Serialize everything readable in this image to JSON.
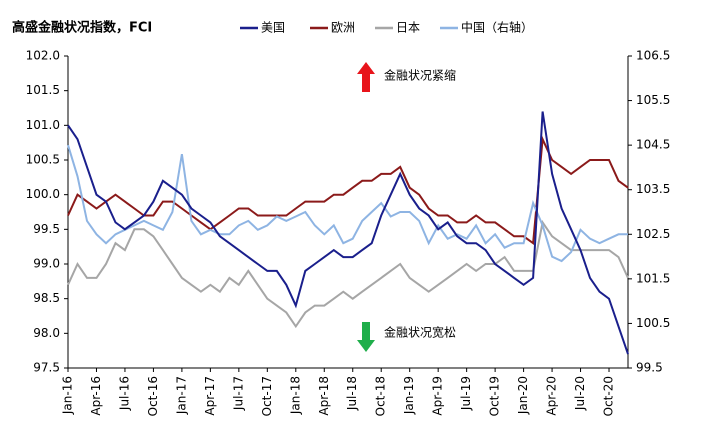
{
  "chart_data": {
    "type": "line",
    "title": "高盛金融状况指数，FCI",
    "annotations": [
      "金融状况紧缩",
      "金融状况宽松"
    ],
    "categories": [
      "Jan-16",
      null,
      null,
      "Apr-16",
      null,
      null,
      "Jul-16",
      null,
      null,
      "Oct-16",
      null,
      null,
      "Jan-17",
      null,
      null,
      "Apr-17",
      null,
      null,
      "Jul-17",
      null,
      null,
      "Oct-17",
      null,
      null,
      "Jan-18",
      null,
      null,
      "Apr-18",
      null,
      null,
      "Jul-18",
      null,
      null,
      "Oct-18",
      null,
      null,
      "Jan-19",
      null,
      null,
      "Apr-19",
      null,
      null,
      "Jul-19",
      null,
      null,
      "Oct-19",
      null,
      null,
      "Jan-20",
      null,
      null,
      "Apr-20",
      null,
      null,
      "Jul-20",
      null,
      null,
      "Oct-20",
      null,
      null
    ],
    "series": [
      {
        "name": "美国",
        "color": "#1a1f8c",
        "values": [
          101.0,
          100.8,
          100.4,
          100.0,
          99.9,
          99.6,
          99.5,
          99.6,
          99.7,
          99.9,
          100.2,
          100.1,
          100.0,
          99.8,
          99.7,
          99.6,
          99.4,
          99.3,
          99.2,
          99.1,
          99.0,
          98.9,
          98.9,
          98.7,
          98.4,
          98.9,
          99.0,
          99.1,
          99.2,
          99.1,
          99.1,
          99.2,
          99.3,
          99.7,
          100.0,
          100.3,
          100.0,
          99.8,
          99.7,
          99.5,
          99.6,
          99.4,
          99.3,
          99.3,
          99.2,
          99.0,
          98.9,
          98.8,
          98.7,
          98.8,
          101.2,
          100.3,
          99.8,
          99.5,
          99.2,
          98.8,
          98.6,
          98.5,
          98.1,
          97.7
        ]
      },
      {
        "name": "欧洲",
        "color": "#8b1a1a",
        "values": [
          99.7,
          100.0,
          99.9,
          99.8,
          99.9,
          100.0,
          99.9,
          99.8,
          99.7,
          99.7,
          99.9,
          99.9,
          99.8,
          99.7,
          99.6,
          99.5,
          99.6,
          99.7,
          99.8,
          99.8,
          99.7,
          99.7,
          99.7,
          99.7,
          99.8,
          99.9,
          99.9,
          99.9,
          100.0,
          100.0,
          100.1,
          100.2,
          100.2,
          100.3,
          100.3,
          100.4,
          100.1,
          100.0,
          99.8,
          99.7,
          99.7,
          99.6,
          99.6,
          99.7,
          99.6,
          99.6,
          99.5,
          99.4,
          99.4,
          99.3,
          100.8,
          100.5,
          100.4,
          100.3,
          100.4,
          100.5,
          100.5,
          100.5,
          100.2,
          100.1
        ]
      },
      {
        "name": "日本",
        "color": "#a6a6a6",
        "values": [
          98.7,
          99.0,
          98.8,
          98.8,
          99.0,
          99.3,
          99.2,
          99.5,
          99.5,
          99.4,
          99.2,
          99.0,
          98.8,
          98.7,
          98.6,
          98.7,
          98.6,
          98.8,
          98.7,
          98.9,
          98.7,
          98.5,
          98.4,
          98.3,
          98.1,
          98.3,
          98.4,
          98.4,
          98.5,
          98.6,
          98.5,
          98.6,
          98.7,
          98.8,
          98.9,
          99.0,
          98.8,
          98.7,
          98.6,
          98.7,
          98.8,
          98.9,
          99.0,
          98.9,
          99.0,
          99.0,
          99.1,
          98.9,
          98.9,
          98.9,
          99.6,
          99.4,
          99.3,
          99.2,
          99.2,
          99.2,
          99.2,
          99.2,
          99.1,
          98.8
        ]
      },
      {
        "name": "中国（右轴）",
        "color": "#8eb4e3",
        "axis": "y2",
        "values": [
          104.5,
          103.8,
          102.8,
          102.5,
          102.3,
          102.5,
          102.6,
          102.7,
          102.8,
          102.7,
          102.6,
          103.0,
          104.3,
          102.8,
          102.5,
          102.6,
          102.5,
          102.5,
          102.7,
          102.8,
          102.6,
          102.7,
          102.9,
          102.8,
          102.9,
          103.0,
          102.7,
          102.5,
          102.7,
          102.3,
          102.4,
          102.8,
          103.0,
          103.2,
          102.9,
          103.0,
          103.0,
          102.8,
          102.3,
          102.7,
          102.4,
          102.5,
          102.4,
          102.7,
          102.3,
          102.5,
          102.2,
          102.3,
          102.3,
          103.2,
          102.7,
          102.0,
          101.9,
          102.1,
          102.6,
          102.4,
          102.3,
          102.4,
          102.5,
          102.5
        ]
      }
    ],
    "ylim": [
      97.5,
      102.0
    ],
    "yticks": [
      97.5,
      {
        "value": 98,
        "label": "98.0"
      },
      98.5,
      {
        "value": 99,
        "label": "99.0"
      },
      99.5,
      {
        "value": 100,
        "label": "100.0"
      },
      100.5,
      {
        "value": 101,
        "label": "101.0"
      },
      101.5,
      {
        "value": 102,
        "label": "102.0"
      }
    ],
    "y2lim": [
      99.5,
      106.5
    ],
    "y2ticks": [
      99.5,
      100.5,
      101.5,
      102.5,
      103.5,
      104.5,
      105.5,
      106.5
    ],
    "legend": "top"
  }
}
